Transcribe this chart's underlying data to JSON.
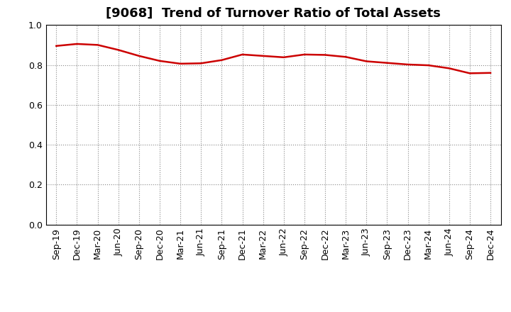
{
  "title": "[9068]  Trend of Turnover Ratio of Total Assets",
  "x_labels": [
    "Sep-19",
    "Dec-19",
    "Mar-20",
    "Jun-20",
    "Sep-20",
    "Dec-20",
    "Mar-21",
    "Jun-21",
    "Sep-21",
    "Dec-21",
    "Mar-22",
    "Jun-22",
    "Sep-22",
    "Dec-22",
    "Mar-23",
    "Jun-23",
    "Sep-23",
    "Dec-23",
    "Mar-24",
    "Jun-24",
    "Sep-24",
    "Dec-24"
  ],
  "y_values": [
    0.895,
    0.905,
    0.9,
    0.875,
    0.845,
    0.82,
    0.806,
    0.808,
    0.824,
    0.852,
    0.845,
    0.838,
    0.852,
    0.85,
    0.84,
    0.818,
    0.81,
    0.802,
    0.798,
    0.783,
    0.758,
    0.76
  ],
  "line_color": "#cc0000",
  "line_width": 1.8,
  "ylim": [
    0.0,
    1.0
  ],
  "yticks": [
    0.0,
    0.2,
    0.4,
    0.6,
    0.8,
    1.0
  ],
  "grid_color": "#888888",
  "bg_color": "#ffffff",
  "title_fontsize": 13,
  "tick_fontsize": 9
}
